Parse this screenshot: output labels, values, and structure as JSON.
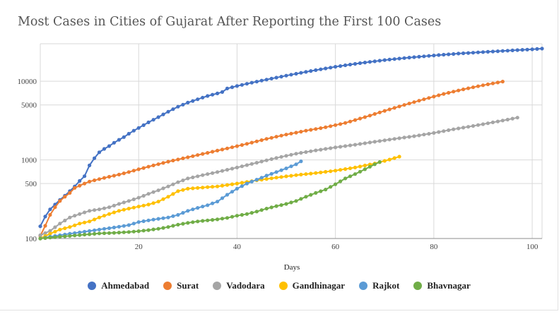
{
  "chart_data": {
    "type": "line",
    "title": "Most Cases in Cities of Gujarat After Reporting the First 100 Cases",
    "xlabel": "Days",
    "ylabel": "",
    "xlim": [
      0,
      102
    ],
    "ylim": [
      100,
      30000
    ],
    "yscale": "log",
    "x_ticks": [
      20,
      40,
      60,
      80,
      100
    ],
    "y_ticks": [
      100,
      500,
      1000,
      5000,
      10000
    ],
    "grid": true,
    "legend_position": "bottom",
    "series": [
      {
        "name": "Ahmedabad",
        "color": "#4472c4",
        "points": [
          [
            0,
            143
          ],
          [
            1,
            190
          ],
          [
            2,
            235
          ],
          [
            3,
            270
          ],
          [
            4,
            310
          ],
          [
            5,
            350
          ],
          [
            6,
            400
          ],
          [
            7,
            460
          ],
          [
            8,
            540
          ],
          [
            9,
            620
          ],
          [
            10,
            850
          ],
          [
            11,
            1050
          ],
          [
            12,
            1250
          ],
          [
            13,
            1380
          ],
          [
            14,
            1500
          ],
          [
            15,
            1650
          ],
          [
            16,
            1800
          ],
          [
            17,
            1950
          ],
          [
            18,
            2150
          ],
          [
            19,
            2350
          ],
          [
            20,
            2550
          ],
          [
            22,
            3000
          ],
          [
            24,
            3500
          ],
          [
            26,
            4100
          ],
          [
            28,
            4750
          ],
          [
            30,
            5350
          ],
          [
            32,
            5900
          ],
          [
            34,
            6500
          ],
          [
            36,
            7000
          ],
          [
            37,
            7300
          ],
          [
            38,
            8100
          ],
          [
            40,
            8700
          ],
          [
            42,
            9300
          ],
          [
            45,
            10200
          ],
          [
            50,
            11800
          ],
          [
            55,
            13500
          ],
          [
            60,
            15300
          ],
          [
            65,
            17000
          ],
          [
            70,
            18600
          ],
          [
            75,
            20000
          ],
          [
            80,
            21300
          ],
          [
            85,
            22500
          ],
          [
            90,
            23500
          ],
          [
            95,
            24500
          ],
          [
            100,
            25500
          ],
          [
            102,
            26000
          ]
        ]
      },
      {
        "name": "Surat",
        "color": "#ed7d31",
        "points": [
          [
            0,
            108
          ],
          [
            1,
            145
          ],
          [
            2,
            200
          ],
          [
            3,
            250
          ],
          [
            4,
            300
          ],
          [
            5,
            340
          ],
          [
            6,
            380
          ],
          [
            7,
            440
          ],
          [
            8,
            470
          ],
          [
            9,
            500
          ],
          [
            10,
            530
          ],
          [
            12,
            570
          ],
          [
            14,
            610
          ],
          [
            16,
            650
          ],
          [
            18,
            700
          ],
          [
            20,
            760
          ],
          [
            23,
            850
          ],
          [
            26,
            950
          ],
          [
            30,
            1080
          ],
          [
            34,
            1230
          ],
          [
            38,
            1400
          ],
          [
            42,
            1600
          ],
          [
            46,
            1850
          ],
          [
            50,
            2100
          ],
          [
            54,
            2350
          ],
          [
            58,
            2600
          ],
          [
            62,
            2950
          ],
          [
            66,
            3500
          ],
          [
            70,
            4200
          ],
          [
            74,
            5000
          ],
          [
            78,
            5900
          ],
          [
            82,
            6900
          ],
          [
            86,
            7900
          ],
          [
            90,
            8900
          ],
          [
            94,
            9900
          ]
        ]
      },
      {
        "name": "Vadodara",
        "color": "#a5a5a5",
        "points": [
          [
            0,
            110
          ],
          [
            2,
            125
          ],
          [
            4,
            155
          ],
          [
            6,
            185
          ],
          [
            8,
            205
          ],
          [
            10,
            225
          ],
          [
            12,
            235
          ],
          [
            14,
            250
          ],
          [
            16,
            275
          ],
          [
            18,
            300
          ],
          [
            20,
            330
          ],
          [
            22,
            370
          ],
          [
            24,
            410
          ],
          [
            26,
            460
          ],
          [
            28,
            520
          ],
          [
            30,
            580
          ],
          [
            33,
            640
          ],
          [
            36,
            700
          ],
          [
            40,
            800
          ],
          [
            44,
            920
          ],
          [
            48,
            1060
          ],
          [
            52,
            1200
          ],
          [
            56,
            1320
          ],
          [
            60,
            1440
          ],
          [
            64,
            1560
          ],
          [
            68,
            1700
          ],
          [
            72,
            1850
          ],
          [
            76,
            2000
          ],
          [
            80,
            2200
          ],
          [
            84,
            2450
          ],
          [
            88,
            2700
          ],
          [
            92,
            3000
          ],
          [
            95,
            3250
          ],
          [
            97,
            3450
          ]
        ]
      },
      {
        "name": "Gandhinagar",
        "color": "#ffc000",
        "points": [
          [
            0,
            100
          ],
          [
            2,
            115
          ],
          [
            4,
            130
          ],
          [
            6,
            140
          ],
          [
            8,
            155
          ],
          [
            10,
            165
          ],
          [
            12,
            185
          ],
          [
            14,
            205
          ],
          [
            16,
            225
          ],
          [
            18,
            240
          ],
          [
            20,
            255
          ],
          [
            22,
            270
          ],
          [
            24,
            295
          ],
          [
            26,
            340
          ],
          [
            28,
            400
          ],
          [
            30,
            430
          ],
          [
            33,
            445
          ],
          [
            36,
            460
          ],
          [
            40,
            500
          ],
          [
            44,
            550
          ],
          [
            48,
            595
          ],
          [
            52,
            640
          ],
          [
            56,
            680
          ],
          [
            60,
            730
          ],
          [
            64,
            800
          ],
          [
            68,
            900
          ],
          [
            71,
            1010
          ],
          [
            73,
            1100
          ]
        ]
      },
      {
        "name": "Rajkot",
        "color": "#5b9bd5",
        "points": [
          [
            0,
            100
          ],
          [
            3,
            108
          ],
          [
            6,
            115
          ],
          [
            9,
            122
          ],
          [
            12,
            130
          ],
          [
            15,
            138
          ],
          [
            18,
            148
          ],
          [
            20,
            162
          ],
          [
            22,
            170
          ],
          [
            24,
            178
          ],
          [
            26,
            185
          ],
          [
            28,
            200
          ],
          [
            30,
            225
          ],
          [
            32,
            245
          ],
          [
            34,
            265
          ],
          [
            36,
            295
          ],
          [
            38,
            360
          ],
          [
            40,
            430
          ],
          [
            42,
            500
          ],
          [
            44,
            560
          ],
          [
            46,
            630
          ],
          [
            48,
            700
          ],
          [
            50,
            780
          ],
          [
            52,
            880
          ],
          [
            53,
            960
          ]
        ]
      },
      {
        "name": "Bhavnagar",
        "color": "#70ad47",
        "points": [
          [
            0,
            100
          ],
          [
            3,
            104
          ],
          [
            6,
            108
          ],
          [
            9,
            112
          ],
          [
            12,
            116
          ],
          [
            15,
            118
          ],
          [
            18,
            121
          ],
          [
            20,
            124
          ],
          [
            22,
            128
          ],
          [
            24,
            133
          ],
          [
            26,
            140
          ],
          [
            28,
            150
          ],
          [
            30,
            158
          ],
          [
            32,
            165
          ],
          [
            34,
            170
          ],
          [
            36,
            175
          ],
          [
            38,
            183
          ],
          [
            40,
            195
          ],
          [
            42,
            205
          ],
          [
            44,
            220
          ],
          [
            46,
            240
          ],
          [
            48,
            258
          ],
          [
            50,
            275
          ],
          [
            52,
            300
          ],
          [
            54,
            340
          ],
          [
            56,
            380
          ],
          [
            58,
            420
          ],
          [
            60,
            490
          ],
          [
            62,
            580
          ],
          [
            64,
            660
          ],
          [
            66,
            760
          ],
          [
            68,
            880
          ],
          [
            69,
            940
          ]
        ]
      }
    ]
  }
}
